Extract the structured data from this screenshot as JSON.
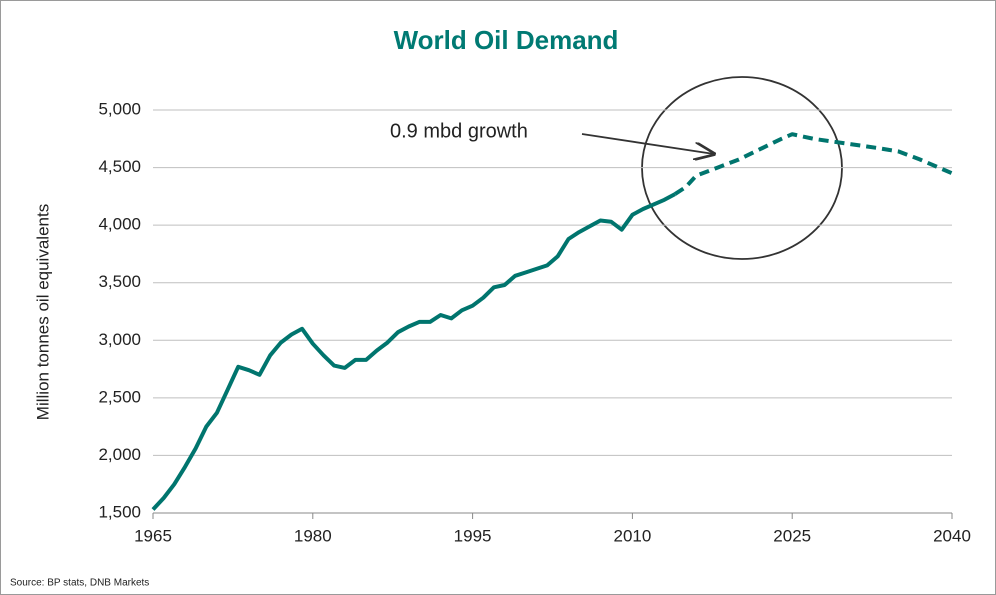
{
  "chart_data": {
    "type": "line",
    "title": "World Oil Demand",
    "y_label": "Million tonnes oil equivalents",
    "annotation": "0.9 mbd growth",
    "source": "Source: BP stats, DNB Markets",
    "xlim": [
      1965,
      2040
    ],
    "xticks": [
      1965,
      1980,
      1995,
      2010,
      2025,
      2040
    ],
    "ylim": [
      1500,
      5000
    ],
    "yticks": [
      {
        "value": 1500,
        "label": "1,500"
      },
      {
        "value": 2000,
        "label": "2,000"
      },
      {
        "value": 2500,
        "label": "2,500"
      },
      {
        "value": 3000,
        "label": "3,000"
      },
      {
        "value": 3500,
        "label": "3,500"
      },
      {
        "value": 4000,
        "label": "4,000"
      },
      {
        "value": 4500,
        "label": "4,500"
      },
      {
        "value": 5000,
        "label": "5,000"
      }
    ],
    "grid": true,
    "series": [
      {
        "color": "#00756e",
        "style": "solid",
        "x": [
          1965,
          1966,
          1967,
          1968,
          1969,
          1970,
          1971,
          1972,
          1973,
          1974,
          1975,
          1976,
          1977,
          1978,
          1979,
          1980,
          1981,
          1982,
          1983,
          1984,
          1985,
          1986,
          1987,
          1988,
          1989,
          1990,
          1991,
          1992,
          1993,
          1994,
          1995,
          1996,
          1997,
          1998,
          1999,
          2000,
          2001,
          2002,
          2003,
          2004,
          2005,
          2006,
          2007,
          2008,
          2009,
          2010,
          2011,
          2012,
          2013,
          2014
        ],
        "values": [
          1530,
          1630,
          1750,
          1900,
          2060,
          2250,
          2370,
          2570,
          2770,
          2740,
          2700,
          2870,
          2980,
          3050,
          3100,
          2970,
          2870,
          2780,
          2760,
          2830,
          2830,
          2910,
          2980,
          3070,
          3120,
          3160,
          3160,
          3220,
          3190,
          3260,
          3300,
          3370,
          3460,
          3480,
          3560,
          3590,
          3620,
          3650,
          3730,
          3880,
          3940,
          3990,
          4040,
          4030,
          3960,
          4090,
          4140,
          4180,
          4220,
          4270
        ]
      },
      {
        "color": "#00756e",
        "style": "dashed",
        "x": [
          2014,
          2015,
          2016,
          2018,
          2020,
          2022,
          2024,
          2025,
          2027,
          2030,
          2033,
          2035,
          2037,
          2040
        ],
        "values": [
          4270,
          4330,
          4430,
          4500,
          4570,
          4660,
          4750,
          4790,
          4750,
          4710,
          4670,
          4640,
          4570,
          4450
        ]
      }
    ]
  }
}
